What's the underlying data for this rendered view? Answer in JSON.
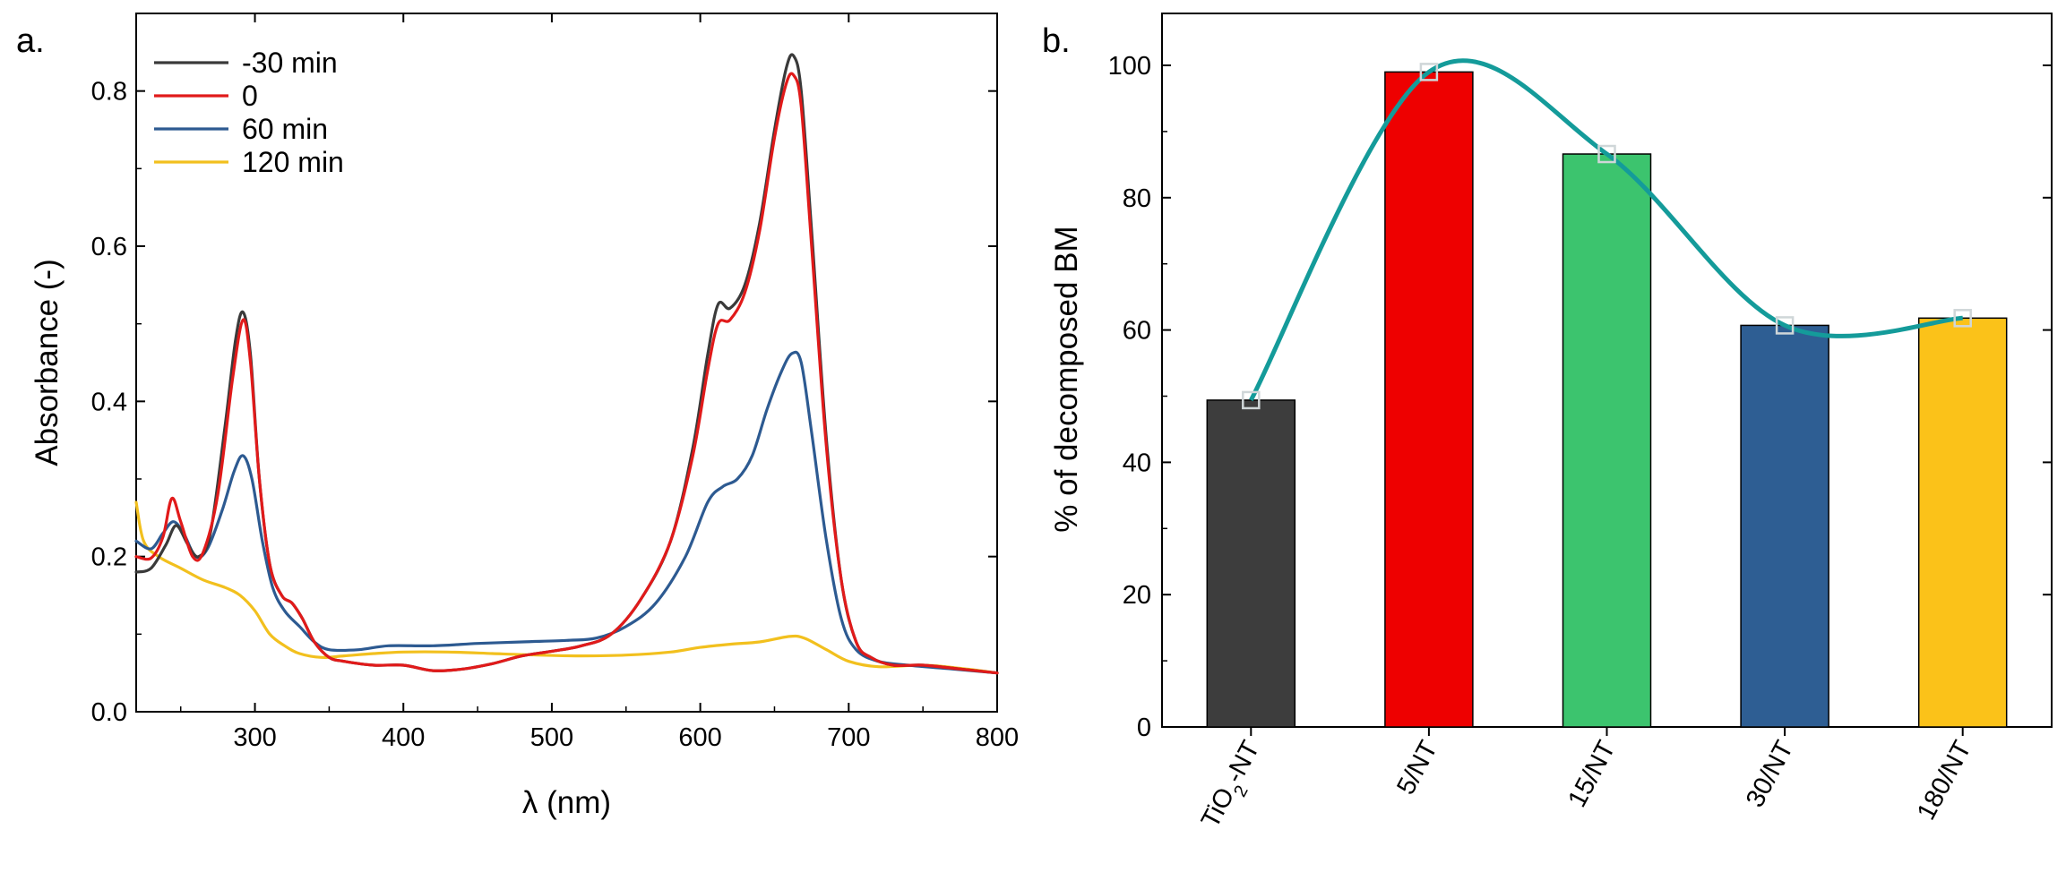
{
  "panel_labels": {
    "a": "a.",
    "b": "b."
  },
  "chart_data": [
    {
      "type": "line",
      "xlabel": "λ (nm)",
      "ylabel": "Absorbance (-)",
      "xlim": [
        220,
        800
      ],
      "ylim": [
        0,
        0.9
      ],
      "x_ticks": [
        "300",
        "400",
        "500",
        "600",
        "700",
        "800"
      ],
      "y_ticks": [
        "0.0",
        "0.2",
        "0.4",
        "0.6",
        "0.8"
      ],
      "legend_position": "top-left",
      "series": [
        {
          "name": "-30 min",
          "color": "#3a3a3a",
          "points": [
            [
              220,
              0.18
            ],
            [
              230,
              0.185
            ],
            [
              240,
              0.215
            ],
            [
              247,
              0.24
            ],
            [
              255,
              0.215
            ],
            [
              262,
              0.2
            ],
            [
              270,
              0.23
            ],
            [
              280,
              0.37
            ],
            [
              287,
              0.48
            ],
            [
              292,
              0.515
            ],
            [
              297,
              0.46
            ],
            [
              303,
              0.3
            ],
            [
              310,
              0.19
            ],
            [
              318,
              0.15
            ],
            [
              325,
              0.14
            ],
            [
              332,
              0.12
            ],
            [
              340,
              0.09
            ],
            [
              350,
              0.07
            ],
            [
              360,
              0.065
            ],
            [
              380,
              0.06
            ],
            [
              400,
              0.06
            ],
            [
              420,
              0.053
            ],
            [
              440,
              0.055
            ],
            [
              460,
              0.062
            ],
            [
              480,
              0.072
            ],
            [
              500,
              0.078
            ],
            [
              520,
              0.085
            ],
            [
              540,
              0.1
            ],
            [
              560,
              0.145
            ],
            [
              580,
              0.22
            ],
            [
              595,
              0.34
            ],
            [
              605,
              0.46
            ],
            [
              612,
              0.525
            ],
            [
              620,
              0.52
            ],
            [
              630,
              0.55
            ],
            [
              640,
              0.63
            ],
            [
              650,
              0.75
            ],
            [
              658,
              0.83
            ],
            [
              663,
              0.845
            ],
            [
              668,
              0.8
            ],
            [
              675,
              0.62
            ],
            [
              685,
              0.35
            ],
            [
              695,
              0.17
            ],
            [
              705,
              0.09
            ],
            [
              715,
              0.07
            ],
            [
              730,
              0.06
            ],
            [
              750,
              0.06
            ],
            [
              775,
              0.055
            ],
            [
              800,
              0.05
            ]
          ]
        },
        {
          "name": "0",
          "color": "#e11a1a",
          "points": [
            [
              220,
              0.2
            ],
            [
              230,
              0.198
            ],
            [
              238,
              0.225
            ],
            [
              244,
              0.275
            ],
            [
              250,
              0.245
            ],
            [
              258,
              0.2
            ],
            [
              265,
              0.205
            ],
            [
              275,
              0.28
            ],
            [
              285,
              0.43
            ],
            [
              292,
              0.505
            ],
            [
              297,
              0.45
            ],
            [
              303,
              0.3
            ],
            [
              310,
              0.19
            ],
            [
              318,
              0.15
            ],
            [
              325,
              0.14
            ],
            [
              332,
              0.12
            ],
            [
              340,
              0.09
            ],
            [
              350,
              0.07
            ],
            [
              360,
              0.065
            ],
            [
              380,
              0.06
            ],
            [
              400,
              0.06
            ],
            [
              420,
              0.053
            ],
            [
              440,
              0.055
            ],
            [
              460,
              0.062
            ],
            [
              480,
              0.072
            ],
            [
              500,
              0.078
            ],
            [
              520,
              0.085
            ],
            [
              540,
              0.1
            ],
            [
              560,
              0.145
            ],
            [
              580,
              0.22
            ],
            [
              595,
              0.33
            ],
            [
              605,
              0.44
            ],
            [
              612,
              0.5
            ],
            [
              620,
              0.505
            ],
            [
              630,
              0.54
            ],
            [
              640,
              0.62
            ],
            [
              650,
              0.74
            ],
            [
              658,
              0.81
            ],
            [
              663,
              0.82
            ],
            [
              668,
              0.78
            ],
            [
              675,
              0.6
            ],
            [
              685,
              0.34
            ],
            [
              695,
              0.17
            ],
            [
              705,
              0.09
            ],
            [
              715,
              0.07
            ],
            [
              730,
              0.06
            ],
            [
              750,
              0.06
            ],
            [
              775,
              0.055
            ],
            [
              800,
              0.05
            ]
          ]
        },
        {
          "name": "60 min",
          "color": "#2d5a91",
          "points": [
            [
              220,
              0.22
            ],
            [
              230,
              0.21
            ],
            [
              238,
              0.23
            ],
            [
              245,
              0.245
            ],
            [
              252,
              0.23
            ],
            [
              260,
              0.2
            ],
            [
              268,
              0.21
            ],
            [
              278,
              0.26
            ],
            [
              286,
              0.31
            ],
            [
              292,
              0.33
            ],
            [
              298,
              0.3
            ],
            [
              305,
              0.22
            ],
            [
              312,
              0.16
            ],
            [
              320,
              0.13
            ],
            [
              330,
              0.11
            ],
            [
              340,
              0.09
            ],
            [
              350,
              0.08
            ],
            [
              370,
              0.08
            ],
            [
              390,
              0.085
            ],
            [
              420,
              0.085
            ],
            [
              450,
              0.088
            ],
            [
              480,
              0.09
            ],
            [
              510,
              0.092
            ],
            [
              530,
              0.095
            ],
            [
              550,
              0.11
            ],
            [
              570,
              0.14
            ],
            [
              590,
              0.2
            ],
            [
              605,
              0.27
            ],
            [
              615,
              0.29
            ],
            [
              625,
              0.3
            ],
            [
              635,
              0.33
            ],
            [
              645,
              0.39
            ],
            [
              655,
              0.44
            ],
            [
              662,
              0.462
            ],
            [
              668,
              0.45
            ],
            [
              675,
              0.36
            ],
            [
              685,
              0.22
            ],
            [
              695,
              0.12
            ],
            [
              705,
              0.08
            ],
            [
              720,
              0.065
            ],
            [
              740,
              0.06
            ],
            [
              770,
              0.055
            ],
            [
              800,
              0.05
            ]
          ]
        },
        {
          "name": "120 min",
          "color": "#f2c01e",
          "points": [
            [
              220,
              0.27
            ],
            [
              225,
              0.22
            ],
            [
              235,
              0.2
            ],
            [
              250,
              0.185
            ],
            [
              265,
              0.17
            ],
            [
              280,
              0.16
            ],
            [
              290,
              0.15
            ],
            [
              300,
              0.13
            ],
            [
              310,
              0.1
            ],
            [
              320,
              0.085
            ],
            [
              330,
              0.075
            ],
            [
              345,
              0.07
            ],
            [
              360,
              0.072
            ],
            [
              380,
              0.075
            ],
            [
              400,
              0.077
            ],
            [
              430,
              0.077
            ],
            [
              460,
              0.075
            ],
            [
              490,
              0.073
            ],
            [
              520,
              0.072
            ],
            [
              550,
              0.073
            ],
            [
              580,
              0.077
            ],
            [
              600,
              0.083
            ],
            [
              620,
              0.087
            ],
            [
              640,
              0.09
            ],
            [
              660,
              0.097
            ],
            [
              670,
              0.095
            ],
            [
              685,
              0.08
            ],
            [
              700,
              0.065
            ],
            [
              720,
              0.058
            ],
            [
              750,
              0.06
            ],
            [
              775,
              0.056
            ],
            [
              800,
              0.05
            ]
          ]
        }
      ]
    },
    {
      "type": "bar",
      "ylabel": "% of decomposed BM",
      "xlabel": "",
      "ylim": [
        0,
        100
      ],
      "y_ticks": [
        "0",
        "20",
        "40",
        "60",
        "80",
        "100"
      ],
      "categories": [
        "TiO2-NT",
        "5/NT",
        "15/NT",
        "30/NT",
        "180/NT"
      ],
      "category_labels": [
        {
          "main": "TiO",
          "sub": "2",
          "rest": "-NT"
        },
        {
          "main": "5/NT",
          "sub": "",
          "rest": ""
        },
        {
          "main": "15/NT",
          "sub": "",
          "rest": ""
        },
        {
          "main": "30/NT",
          "sub": "",
          "rest": ""
        },
        {
          "main": "180/NT",
          "sub": "",
          "rest": ""
        }
      ],
      "values": [
        49.4,
        99.0,
        86.6,
        60.7,
        61.8
      ],
      "bar_colors": [
        "#3d3d3d",
        "#ee0000",
        "#3cc46e",
        "#2e5e93",
        "#fbc219"
      ],
      "trend_color": "#149b9a",
      "marker_color": "#cfd6d8"
    }
  ]
}
